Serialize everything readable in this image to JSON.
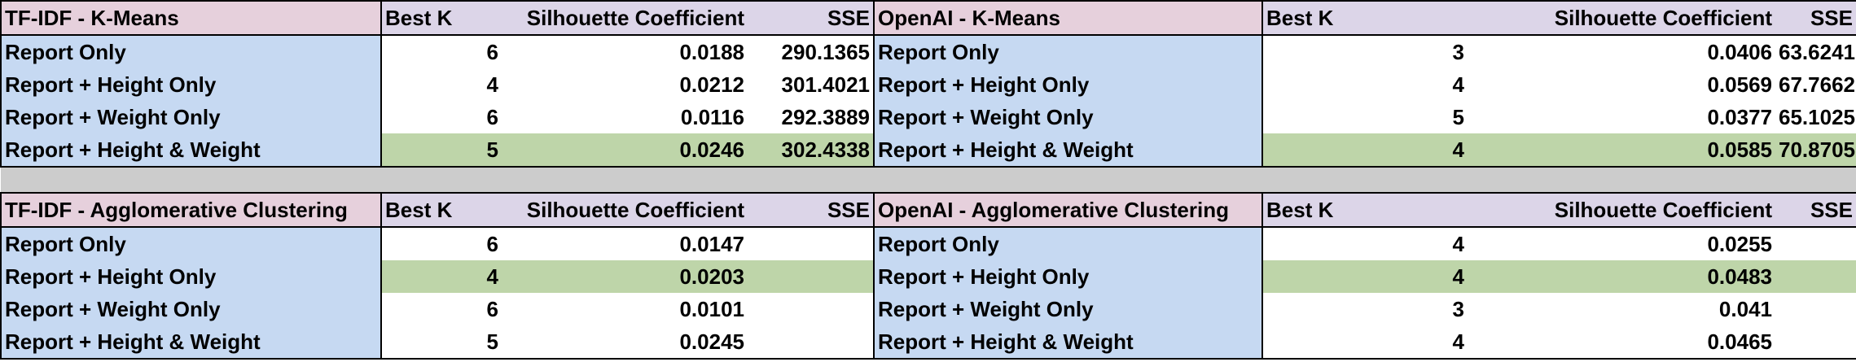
{
  "colors": {
    "title_bg": "#e6d0dc",
    "header_bg": "#dcd5e8",
    "label_bg": "#c6d9f2",
    "best_row_bg": "#bed5a9",
    "plain_bg": "#ffffff",
    "separator_bg": "#cccccc",
    "gridline": "#000000"
  },
  "columns": [
    "Best K",
    "Silhouette Coefficient",
    "SSE"
  ],
  "blocks": [
    {
      "left": {
        "title": "TF-IDF - K-Means",
        "rows": [
          {
            "label": "Report Only",
            "k": "6",
            "sil": "0.0188",
            "sse": "290.1365",
            "best": false
          },
          {
            "label": "Report + Height Only",
            "k": "4",
            "sil": "0.0212",
            "sse": "301.4021",
            "best": false
          },
          {
            "label": "Report + Weight Only",
            "k": "6",
            "sil": "0.0116",
            "sse": "292.3889",
            "best": false
          },
          {
            "label": "Report + Height & Weight",
            "k": "5",
            "sil": "0.0246",
            "sse": "302.4338",
            "best": true
          }
        ]
      },
      "right": {
        "title": "OpenAI - K-Means",
        "rows": [
          {
            "label": "Report Only",
            "k": "3",
            "sil": "0.0406",
            "sse": "63.6241",
            "best": false
          },
          {
            "label": "Report + Height Only",
            "k": "4",
            "sil": "0.0569",
            "sse": "67.7662",
            "best": false
          },
          {
            "label": "Report + Weight Only",
            "k": "5",
            "sil": "0.0377",
            "sse": "65.1025",
            "best": false
          },
          {
            "label": "Report + Height & Weight",
            "k": "4",
            "sil": "0.0585",
            "sse": "70.8705",
            "best": true
          }
        ]
      }
    },
    {
      "left": {
        "title": "TF-IDF - Agglomerative Clustering",
        "rows": [
          {
            "label": "Report Only",
            "k": "6",
            "sil": "0.0147",
            "sse": "",
            "best": false
          },
          {
            "label": "Report + Height Only",
            "k": "4",
            "sil": "0.0203",
            "sse": "",
            "best": true
          },
          {
            "label": "Report + Weight Only",
            "k": "6",
            "sil": "0.0101",
            "sse": "",
            "best": false
          },
          {
            "label": "Report + Height & Weight",
            "k": "5",
            "sil": "0.0245",
            "sse": "",
            "best": false
          }
        ]
      },
      "right": {
        "title": "OpenAI - Agglomerative Clustering",
        "rows": [
          {
            "label": "Report Only",
            "k": "4",
            "sil": "0.0255",
            "sse": "",
            "best": false
          },
          {
            "label": "Report + Height Only",
            "k": "4",
            "sil": "0.0483",
            "sse": "",
            "best": true
          },
          {
            "label": "Report + Weight Only",
            "k": "3",
            "sil": "0.041",
            "sse": "",
            "best": false
          },
          {
            "label": "Report + Height & Weight",
            "k": "4",
            "sil": "0.0465",
            "sse": "",
            "best": false
          }
        ]
      }
    }
  ]
}
